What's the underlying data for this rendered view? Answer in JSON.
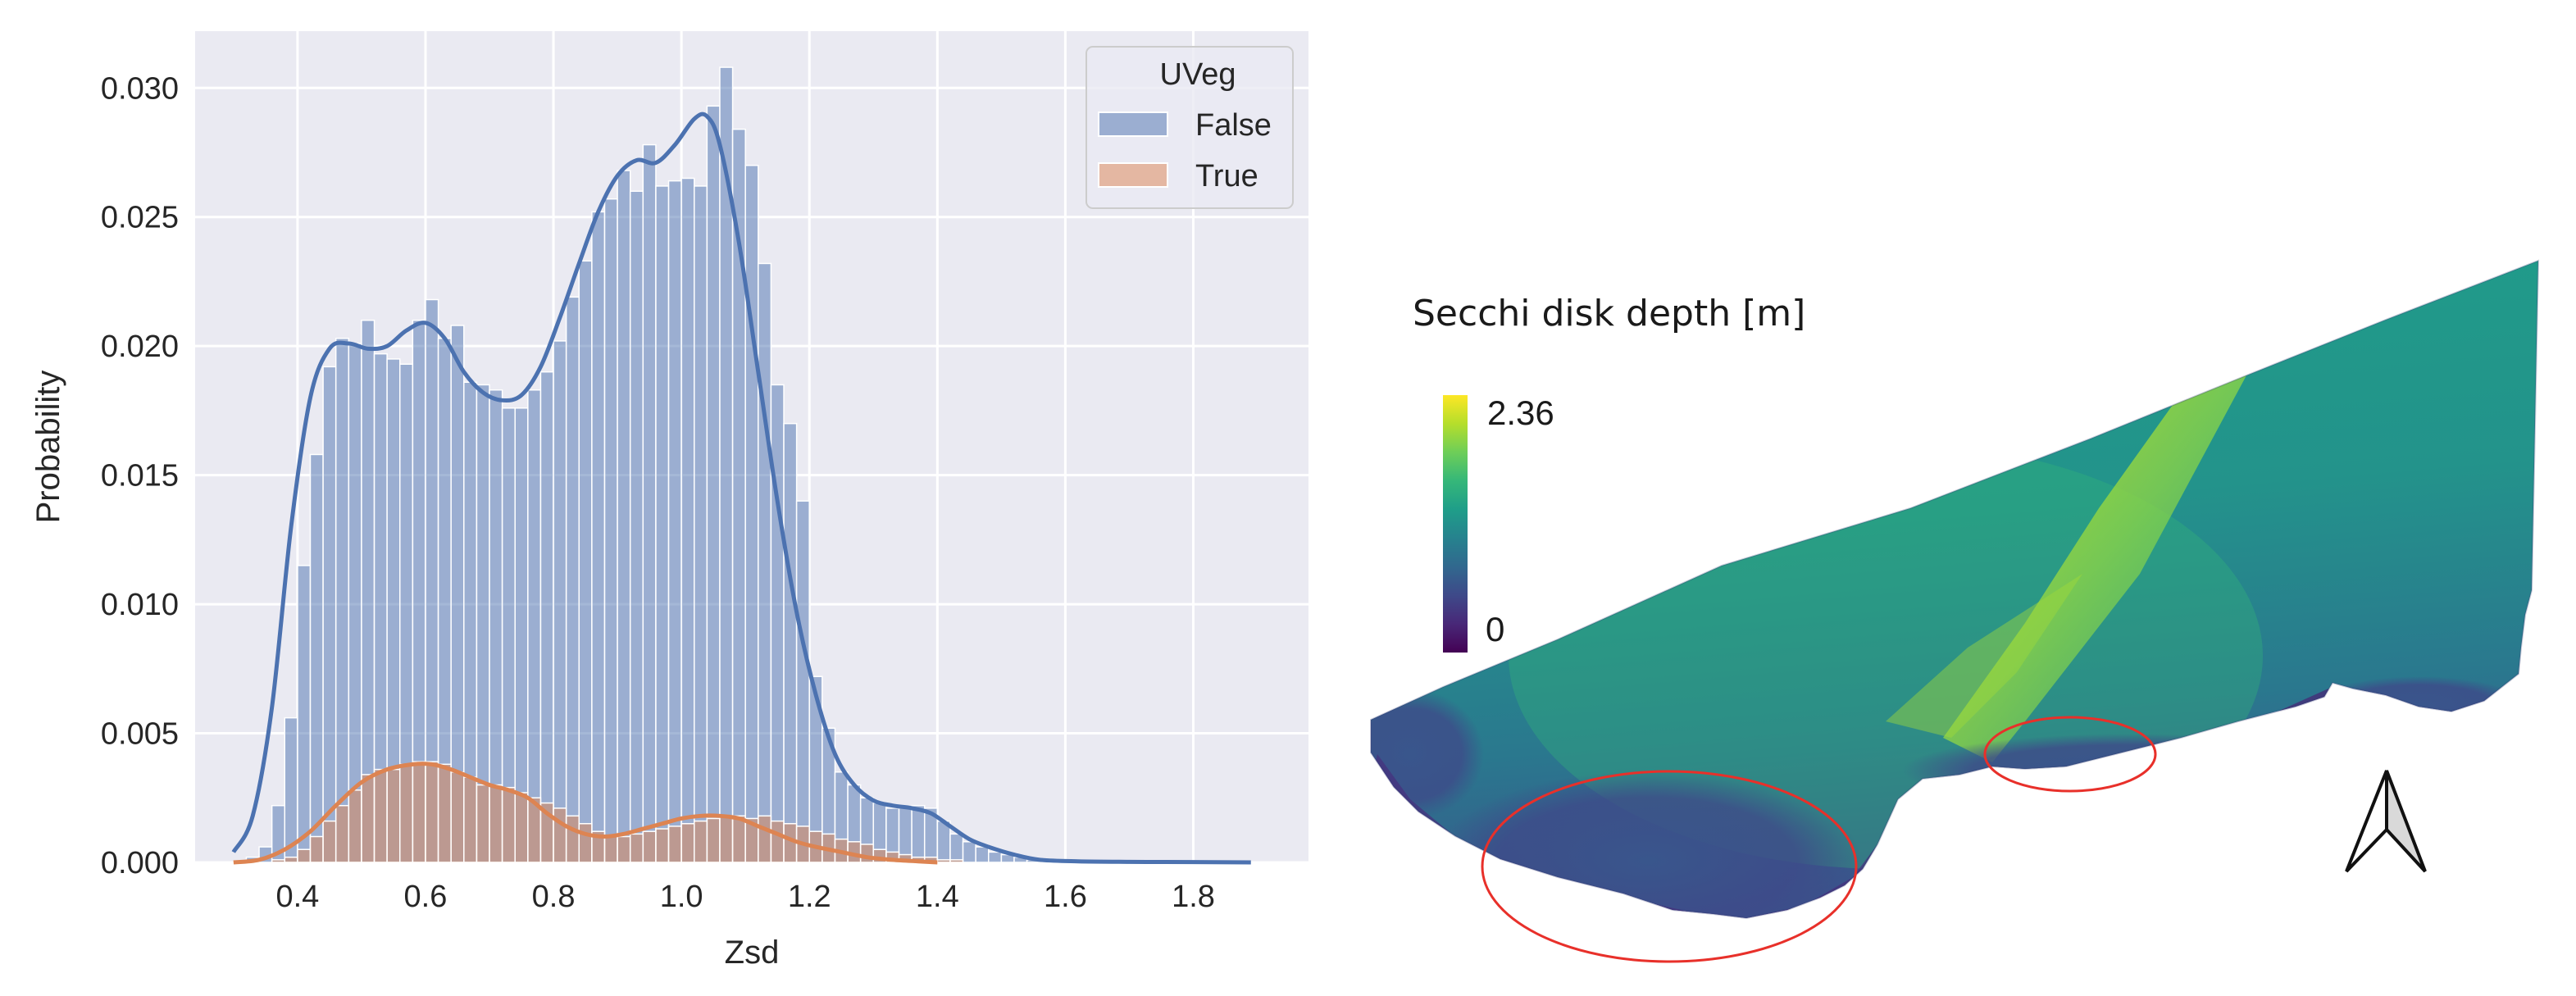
{
  "chart_data": [
    {
      "type": "histogram",
      "xlabel": "Zsd",
      "ylabel": "Probability",
      "xlim": [
        0.24,
        1.98
      ],
      "ylim": [
        0.0,
        0.0322
      ],
      "xticks": [
        0.4,
        0.6,
        0.8,
        1.0,
        1.2,
        1.4,
        1.6,
        1.8
      ],
      "xtick_labels": [
        "0.4",
        "0.6",
        "0.8",
        "1.0",
        "1.2",
        "1.4",
        "1.6",
        "1.8"
      ],
      "yticks": [
        0.0,
        0.005,
        0.01,
        0.015,
        0.02,
        0.025,
        0.03
      ],
      "ytick_labels": [
        "0.000",
        "0.005",
        "0.010",
        "0.015",
        "0.020",
        "0.025",
        "0.030"
      ],
      "grid": true,
      "bin_start": 0.3,
      "bin_width": 0.02,
      "legend": {
        "title": "UVeg",
        "position": "top-right",
        "entries": [
          {
            "label": "False",
            "color": "#4c72b0"
          },
          {
            "label": "True",
            "color": "#dd8452"
          }
        ]
      },
      "series": [
        {
          "name": "False",
          "color": "#4c72b0",
          "fill_alpha": 0.5,
          "values": [
            0,
            0.0002,
            0.0006,
            0.0022,
            0.0056,
            0.0115,
            0.0158,
            0.0192,
            0.0203,
            0.0201,
            0.021,
            0.0197,
            0.0195,
            0.0193,
            0.021,
            0.0218,
            0.0203,
            0.0208,
            0.0186,
            0.0185,
            0.0183,
            0.0176,
            0.0176,
            0.0183,
            0.019,
            0.0202,
            0.0219,
            0.0233,
            0.0252,
            0.0257,
            0.0268,
            0.026,
            0.0278,
            0.0262,
            0.0264,
            0.0265,
            0.0262,
            0.0293,
            0.0308,
            0.0284,
            0.027,
            0.0232,
            0.0185,
            0.017,
            0.014,
            0.0072,
            0.0052,
            0.0035,
            0.003,
            0.0025,
            0.0023,
            0.0021,
            0.0021,
            0.0022,
            0.0021,
            0.0016,
            0.0011,
            0.0008,
            0.0006,
            0.0004,
            0.0003,
            0.0002,
            0.0001,
            0.0001,
            0.0001,
            5e-05,
            5e-05,
            4e-05,
            3e-05,
            3e-05,
            2e-05,
            2e-05,
            2e-05,
            1e-05,
            1e-05,
            1e-05,
            1e-05,
            1e-05,
            1e-05,
            0
          ],
          "kde": [
            [
              0.3,
              0.0004
            ],
            [
              0.33,
              0.0018
            ],
            [
              0.36,
              0.006
            ],
            [
              0.39,
              0.013
            ],
            [
              0.42,
              0.018
            ],
            [
              0.45,
              0.0199
            ],
            [
              0.48,
              0.0201
            ],
            [
              0.51,
              0.0199
            ],
            [
              0.54,
              0.02
            ],
            [
              0.57,
              0.0206
            ],
            [
              0.6,
              0.0209
            ],
            [
              0.63,
              0.0203
            ],
            [
              0.66,
              0.019
            ],
            [
              0.69,
              0.0182
            ],
            [
              0.72,
              0.0179
            ],
            [
              0.75,
              0.0181
            ],
            [
              0.78,
              0.0192
            ],
            [
              0.81,
              0.0211
            ],
            [
              0.84,
              0.0232
            ],
            [
              0.87,
              0.0252
            ],
            [
              0.9,
              0.0266
            ],
            [
              0.93,
              0.0272
            ],
            [
              0.96,
              0.0271
            ],
            [
              0.99,
              0.0278
            ],
            [
              1.02,
              0.0288
            ],
            [
              1.04,
              0.0289
            ],
            [
              1.06,
              0.0278
            ],
            [
              1.09,
              0.024
            ],
            [
              1.12,
              0.019
            ],
            [
              1.15,
              0.014
            ],
            [
              1.18,
              0.0097
            ],
            [
              1.21,
              0.0065
            ],
            [
              1.24,
              0.0042
            ],
            [
              1.27,
              0.003
            ],
            [
              1.3,
              0.0024
            ],
            [
              1.33,
              0.0022
            ],
            [
              1.36,
              0.0021
            ],
            [
              1.39,
              0.0019
            ],
            [
              1.42,
              0.0014
            ],
            [
              1.45,
              0.0009
            ],
            [
              1.48,
              0.0006
            ],
            [
              1.52,
              0.0003
            ],
            [
              1.56,
              0.0001
            ],
            [
              1.62,
              4e-05
            ],
            [
              1.7,
              2e-05
            ],
            [
              1.8,
              1e-05
            ],
            [
              1.89,
              0.0
            ]
          ]
        },
        {
          "name": "True",
          "color": "#dd8452",
          "fill_alpha": 0.5,
          "values": [
            0,
            0,
            0,
            0.0001,
            0.0002,
            0.0005,
            0.001,
            0.0016,
            0.0022,
            0.0028,
            0.0034,
            0.0036,
            0.0036,
            0.0038,
            0.0039,
            0.0039,
            0.0038,
            0.0035,
            0.0033,
            0.003,
            0.003,
            0.0029,
            0.0027,
            0.0025,
            0.0023,
            0.0021,
            0.0018,
            0.0015,
            0.0012,
            0.001,
            0.001,
            0.0011,
            0.0012,
            0.0013,
            0.0014,
            0.0015,
            0.0016,
            0.0017,
            0.0018,
            0.0018,
            0.0017,
            0.0018,
            0.0016,
            0.0015,
            0.0014,
            0.0012,
            0.0011,
            0.0009,
            0.0008,
            0.0007,
            0.0005,
            0.0004,
            0.0003,
            0.0002,
            0.0002,
            0.0001,
            0.0001,
            0,
            0,
            0
          ],
          "kde": [
            [
              0.3,
              0.0
            ],
            [
              0.34,
              0.0001
            ],
            [
              0.38,
              0.0005
            ],
            [
              0.42,
              0.0012
            ],
            [
              0.46,
              0.0022
            ],
            [
              0.5,
              0.0031
            ],
            [
              0.54,
              0.0036
            ],
            [
              0.58,
              0.0038
            ],
            [
              0.61,
              0.0038
            ],
            [
              0.64,
              0.0036
            ],
            [
              0.67,
              0.0033
            ],
            [
              0.7,
              0.003
            ],
            [
              0.73,
              0.0028
            ],
            [
              0.76,
              0.0025
            ],
            [
              0.79,
              0.0019
            ],
            [
              0.82,
              0.0014
            ],
            [
              0.85,
              0.0011
            ],
            [
              0.88,
              0.001
            ],
            [
              0.91,
              0.0011
            ],
            [
              0.94,
              0.0013
            ],
            [
              0.97,
              0.0015
            ],
            [
              1.0,
              0.0017
            ],
            [
              1.03,
              0.0018
            ],
            [
              1.06,
              0.0018
            ],
            [
              1.09,
              0.0017
            ],
            [
              1.12,
              0.0014
            ],
            [
              1.15,
              0.0011
            ],
            [
              1.18,
              0.0008
            ],
            [
              1.21,
              0.0006
            ],
            [
              1.25,
              0.0004
            ],
            [
              1.29,
              0.0002
            ],
            [
              1.33,
              0.0001
            ],
            [
              1.37,
              4e-05
            ],
            [
              1.4,
              0.0
            ]
          ]
        }
      ]
    },
    {
      "type": "map",
      "title": "Secchi disk depth [m]",
      "colorbar": {
        "max_label": "2.36",
        "min_label": "0",
        "range": [
          0,
          2.36
        ],
        "colors": [
          "#fde725",
          "#b5de2b",
          "#6ece58",
          "#35b779",
          "#1f9e89",
          "#26828e",
          "#31688e",
          "#3e4989",
          "#482878",
          "#440154"
        ]
      },
      "annotations": [
        "red ellipse near south-west shore",
        "red ellipse near south-central shore"
      ],
      "north_arrow": true
    }
  ]
}
